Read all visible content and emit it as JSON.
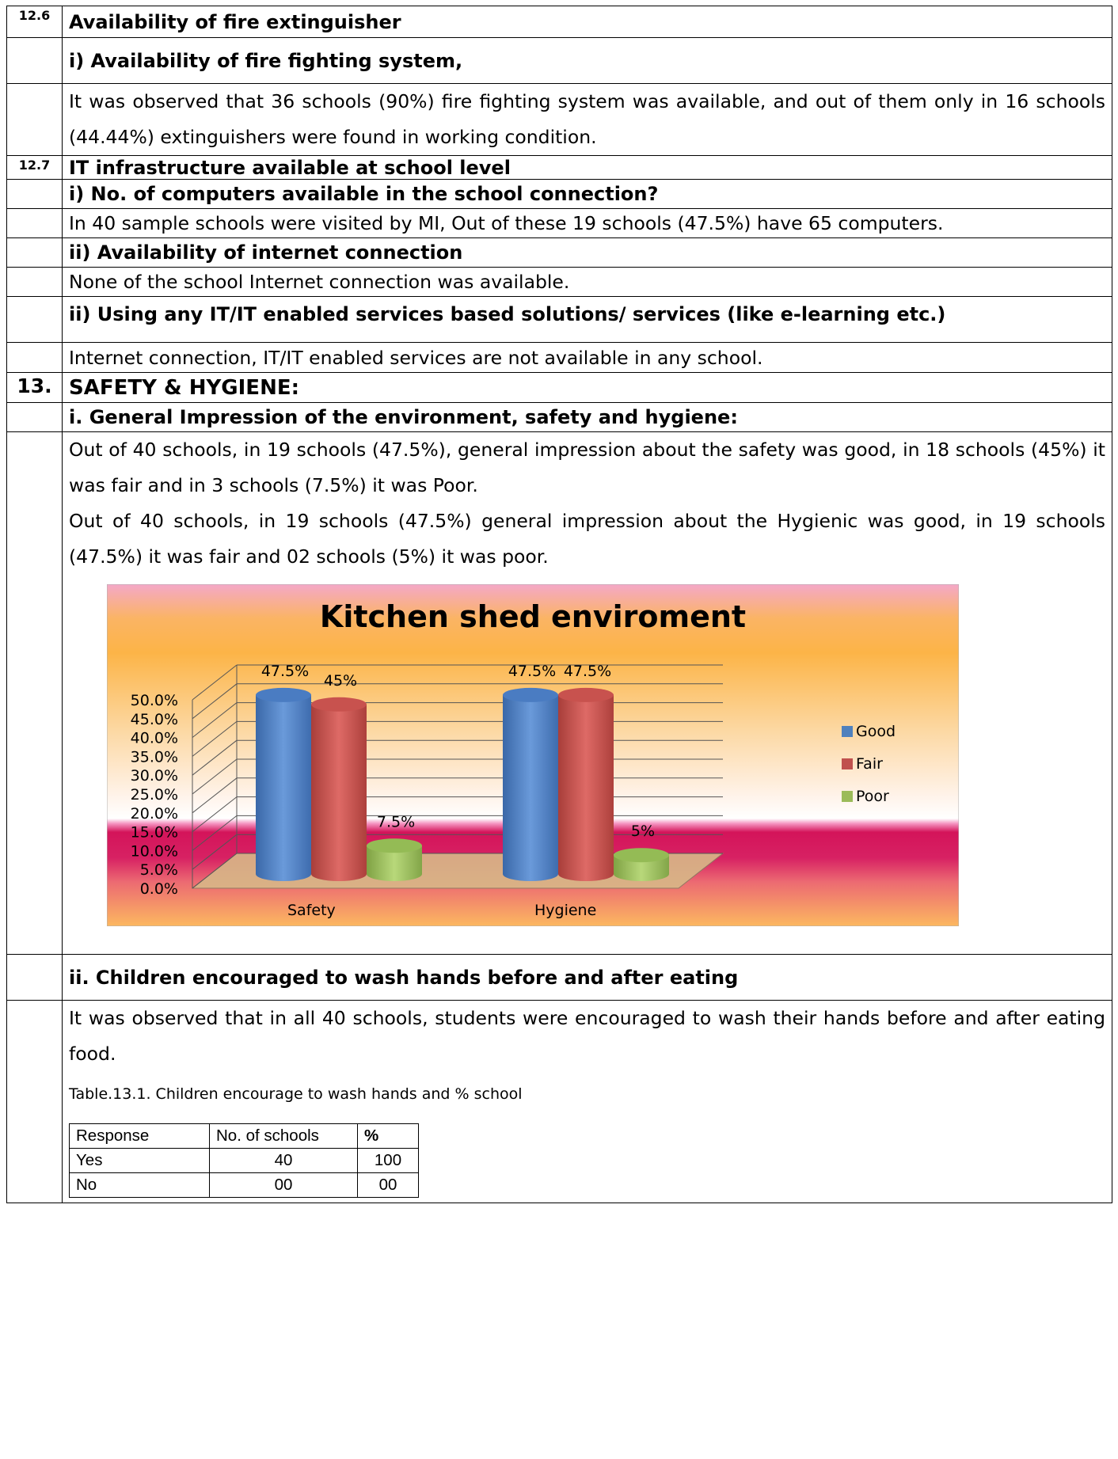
{
  "s126": {
    "number": "12.6",
    "heading": "Availability of fire extinguisher",
    "sub": "i) Availability of fire fighting system,",
    "text": "It was observed that 36 schools (90%) fire fighting system was available, and out of them only in 16 schools (44.44%) extinguishers were found in working condition."
  },
  "s127": {
    "number": "12.7",
    "heading": "IT infrastructure available at school level",
    "q1": "i)  No. of computers available in the school connection?",
    "a1": "In 40 sample schools were visited by MI, Out of these 19 schools (47.5%) have 65 computers.",
    "q2": "ii)  Availability of internet connection",
    "a2": "None of the school Internet connection was available.",
    "q3": "ii) Using any IT/IT enabled services based solutions/ services (like e-learning etc.)",
    "a3": "Internet connection, IT/IT enabled services are not available in any school."
  },
  "s13": {
    "number": "13.",
    "heading": "SAFETY & HYGIENE:",
    "sub1": "i. General Impression of the environment, safety and hygiene:",
    "p1": "Out of 40 schools, in 19 schools (47.5%), general impression about the safety was good, in 18 schools (45%) it was fair and in 3 schools (7.5%) it was Poor.",
    "p2": "Out of 40 schools, in 19 schools (47.5%) general impression about the Hygienic was good, in 19 schools (47.5%) it was fair and 02 schools (5%) it was poor.",
    "sub2": "ii.  Children encouraged to wash hands before and after eating",
    "p3": "It was observed that in all 40 schools, students were encouraged to wash their hands before and after eating food.",
    "table_caption": "Table.13.1. Children encourage to wash hands and % school",
    "table": {
      "headers": [
        "Response",
        "No. of schools",
        "%"
      ],
      "rows": [
        [
          "Yes",
          "40",
          "100"
        ],
        [
          "No",
          "00",
          "00"
        ]
      ]
    }
  },
  "chart_data": {
    "type": "bar",
    "title": "Kitchen shed enviroment",
    "categories": [
      "Safety",
      "Hygiene"
    ],
    "series": [
      {
        "name": "Good",
        "values": [
          47.5,
          47.5
        ],
        "labels": [
          "47.5%",
          "47.5%"
        ],
        "color": "#4f81bd"
      },
      {
        "name": "Fair",
        "values": [
          45,
          47.5
        ],
        "labels": [
          "45%",
          "47.5%"
        ],
        "color": "#c0504d"
      },
      {
        "name": "Poor",
        "values": [
          7.5,
          5
        ],
        "labels": [
          "7.5%",
          "5%"
        ],
        "color": "#9bbb59"
      }
    ],
    "yticks": [
      "0.0%",
      "5.0%",
      "10.0%",
      "15.0%",
      "20.0%",
      "25.0%",
      "30.0%",
      "35.0%",
      "40.0%",
      "45.0%",
      "50.0%"
    ],
    "ylim": [
      0,
      50
    ],
    "grid": true,
    "legend_position": "right",
    "three_d": true
  }
}
